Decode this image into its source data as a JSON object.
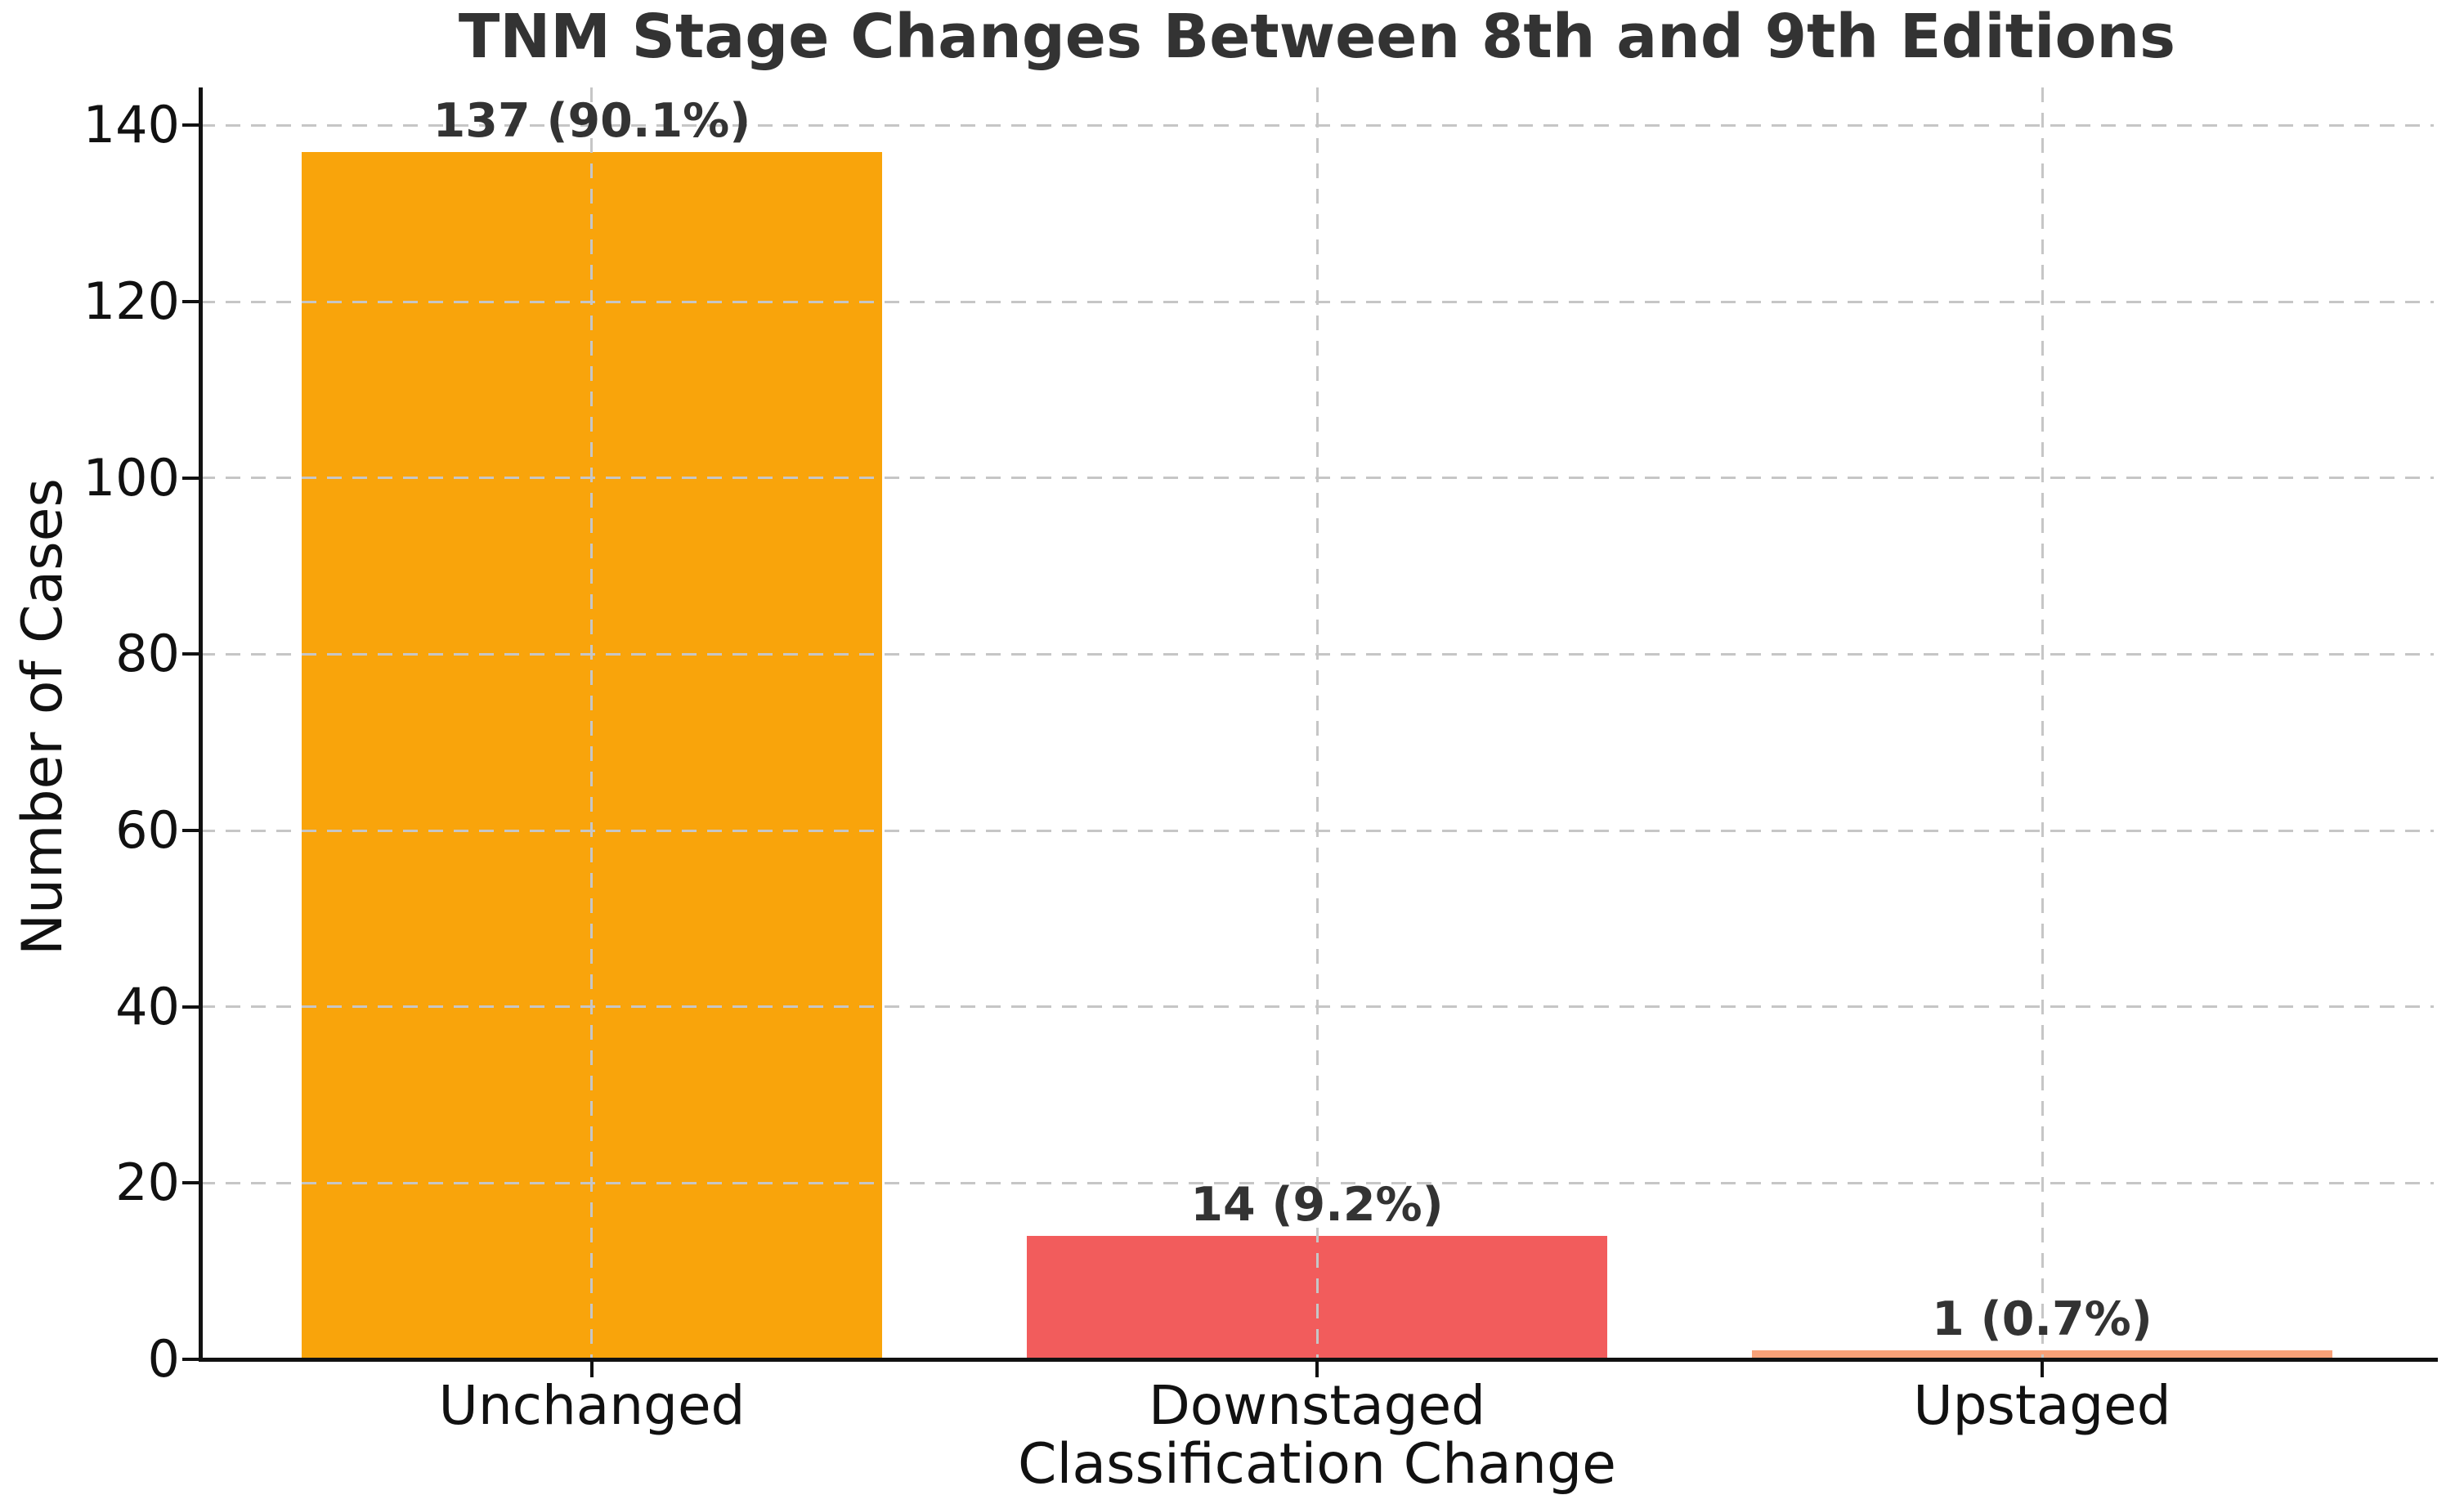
{
  "chart_data": {
    "type": "bar",
    "title": "TNM Stage Changes Between 8th and 9th Editions",
    "xlabel": "Classification Change",
    "ylabel": "Number of Cases",
    "categories": [
      "Unchanged",
      "Downstaged",
      "Upstaged"
    ],
    "values": [
      137,
      14,
      1
    ],
    "bar_value_labels": [
      "137 (90.1%)",
      "14 (9.2%)",
      "1 (0.7%)"
    ],
    "bar_colors": [
      "#F9A40B",
      "#F25C5C",
      "#F8A178"
    ],
    "yticks": [
      0,
      20,
      40,
      60,
      80,
      100,
      120,
      140
    ],
    "ytick_labels": [
      "0",
      "20",
      "40",
      "60",
      "80",
      "100",
      "120",
      "140"
    ],
    "ylim": [
      0,
      144.3
    ],
    "bar_width_fraction": 0.8,
    "grid": {
      "style": "dashed",
      "horizontal": true,
      "vertical": true
    },
    "legend": "none",
    "colors": {
      "title_text": "#333333",
      "value_label_text": "#333333",
      "tick_text": "#111111",
      "gridline": "#c6c6c6",
      "spine": "#111111",
      "background": "#ffffff"
    }
  }
}
